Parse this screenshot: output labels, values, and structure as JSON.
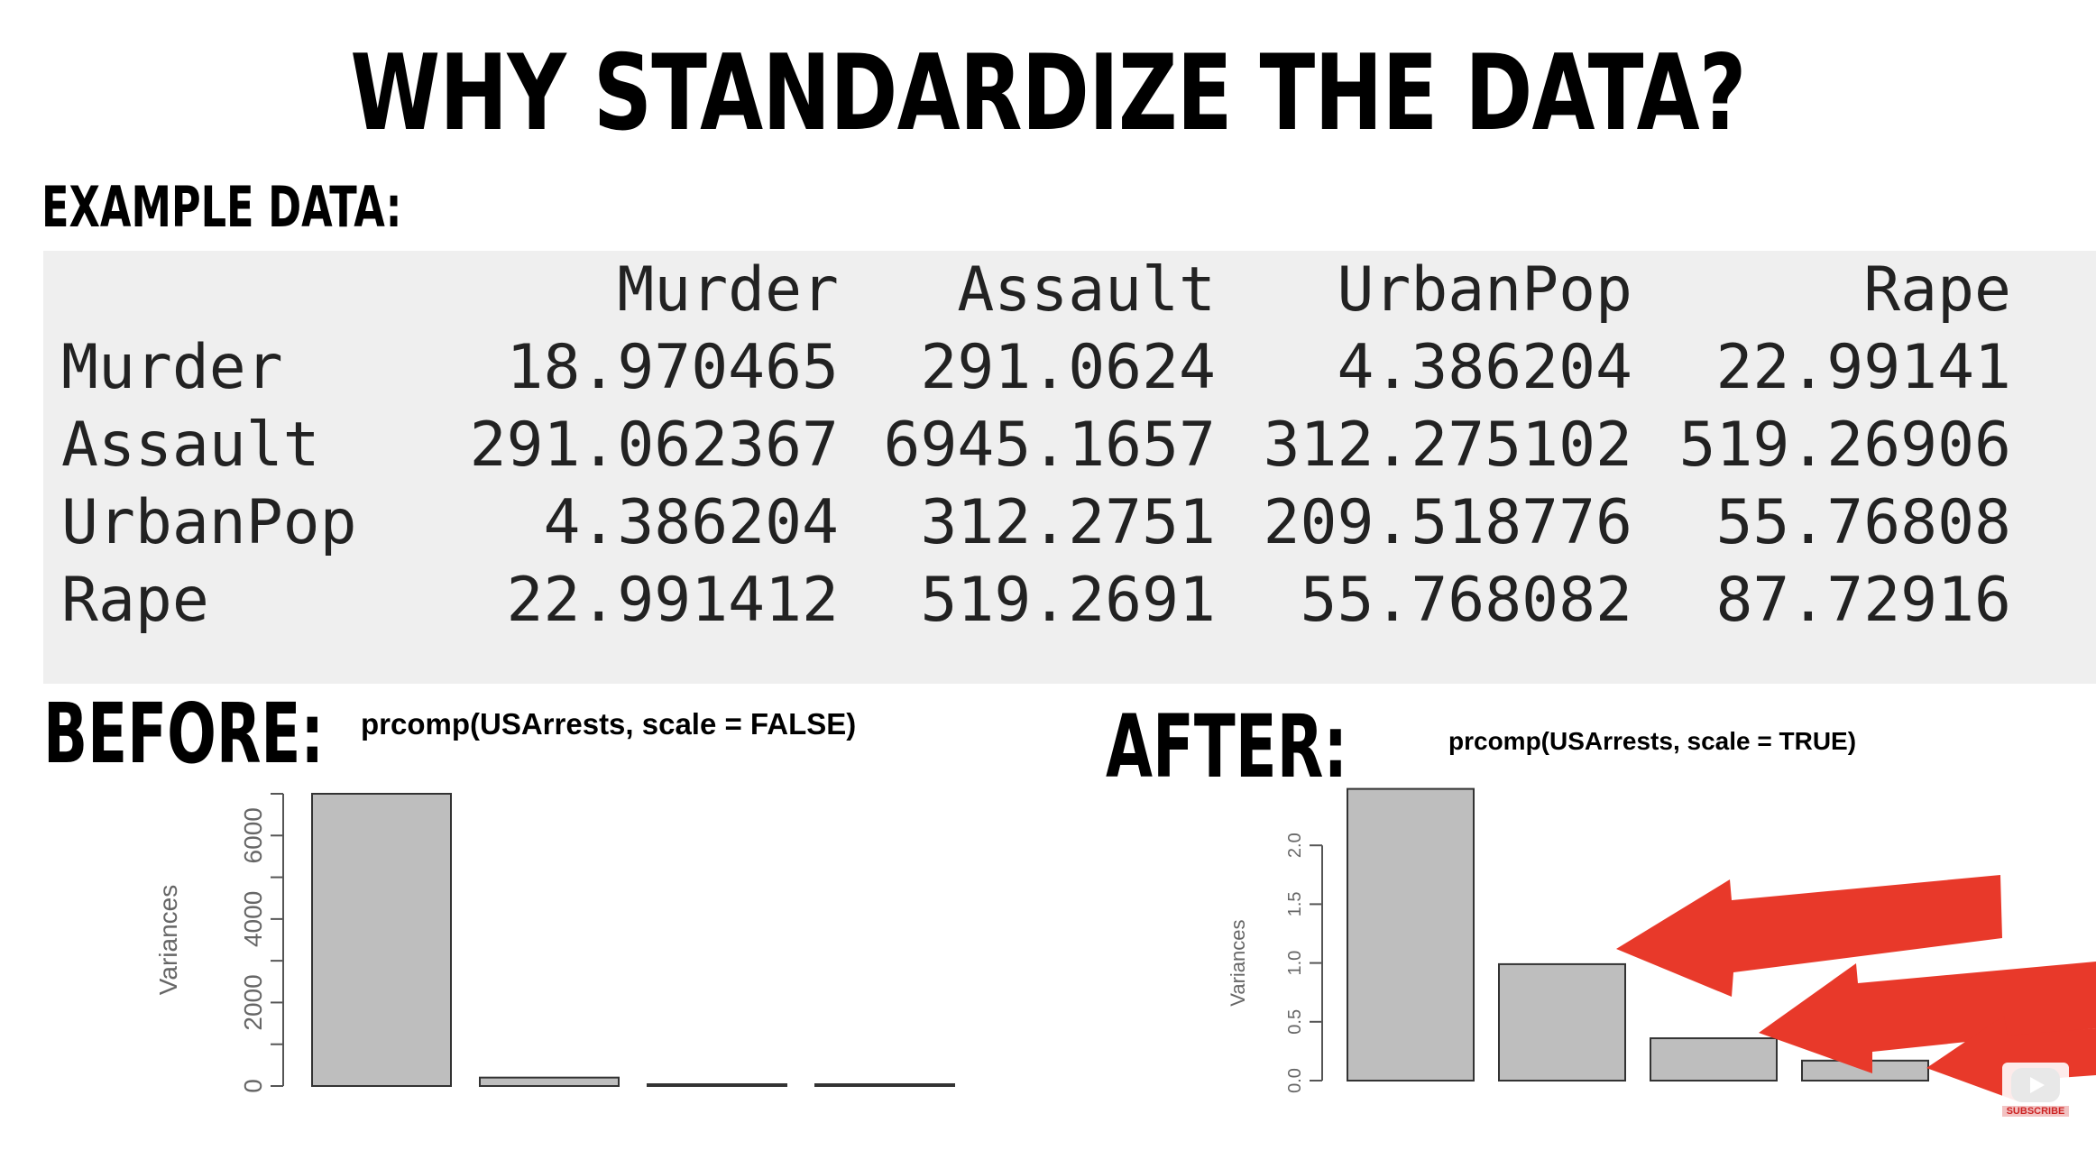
{
  "slide": {
    "title": "WHY STANDARDIZE THE DATA?",
    "example_label": "EXAMPLE DATA:",
    "before_label": "BEFORE:",
    "after_label": "AFTER:",
    "subscribe_label": "SUBSCRIBE"
  },
  "matrix": {
    "columns": [
      "Murder",
      "Assault",
      "UrbanPop",
      "Rape"
    ],
    "rows": [
      {
        "name": "Murder",
        "values": [
          "18.970465",
          "291.0624",
          "4.386204",
          "22.99141"
        ]
      },
      {
        "name": "Assault",
        "values": [
          "291.062367",
          "6945.1657",
          "312.275102",
          "519.26906"
        ]
      },
      {
        "name": "UrbanPop",
        "values": [
          "4.386204",
          "312.2751",
          "209.518776",
          "55.76808"
        ]
      },
      {
        "name": "Rape",
        "values": [
          "22.991412",
          "519.2691",
          "55.768082",
          "87.72916"
        ]
      }
    ]
  },
  "colors": {
    "panel_background": "#efefef",
    "bar_fill": "#bebebe",
    "arrow_red": "#e8392a"
  },
  "chart_data": [
    {
      "type": "bar",
      "title": "prcomp(USArrests, scale = FALSE)",
      "ylabel": "Variances",
      "xlabel": "",
      "values": [
        7011.1,
        201.99,
        42.11,
        6.16
      ],
      "ylim": [
        0,
        7000
      ],
      "yticks": [
        0,
        1000,
        2000,
        3000,
        4000,
        5000,
        6000,
        7000
      ],
      "ytick_labels": [
        "0",
        "",
        "2000",
        "",
        "4000",
        "",
        "6000",
        ""
      ],
      "grid": false
    },
    {
      "type": "bar",
      "title": "prcomp(USArrests, scale = TRUE)",
      "ylabel": "Variances",
      "xlabel": "",
      "values": [
        2.48,
        0.99,
        0.36,
        0.17
      ],
      "ylim": [
        0,
        2.5
      ],
      "yticks": [
        0.0,
        0.5,
        1.0,
        1.5,
        2.0
      ],
      "ytick_labels": [
        "0.0",
        "0.5",
        "1.0",
        "1.5",
        "2.0"
      ],
      "grid": false
    }
  ]
}
